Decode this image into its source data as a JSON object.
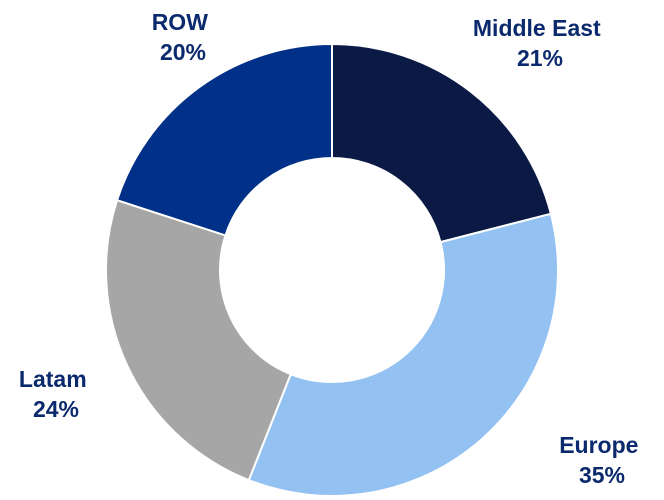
{
  "chart_data": {
    "type": "pie",
    "donut": true,
    "title": "",
    "slices": [
      {
        "label": "Middle East",
        "value": 21,
        "value_label": "21%",
        "color": "#0b1a45"
      },
      {
        "label": "Europe",
        "value": 35,
        "value_label": "35%",
        "color": "#93c1f2"
      },
      {
        "label": "Latam",
        "value": 24,
        "value_label": "24%",
        "color": "#a6a6a6"
      },
      {
        "label": "ROW",
        "value": 20,
        "value_label": "20%",
        "color": "#003087"
      }
    ],
    "label_color": "#0b2a6e",
    "legend": "none"
  }
}
